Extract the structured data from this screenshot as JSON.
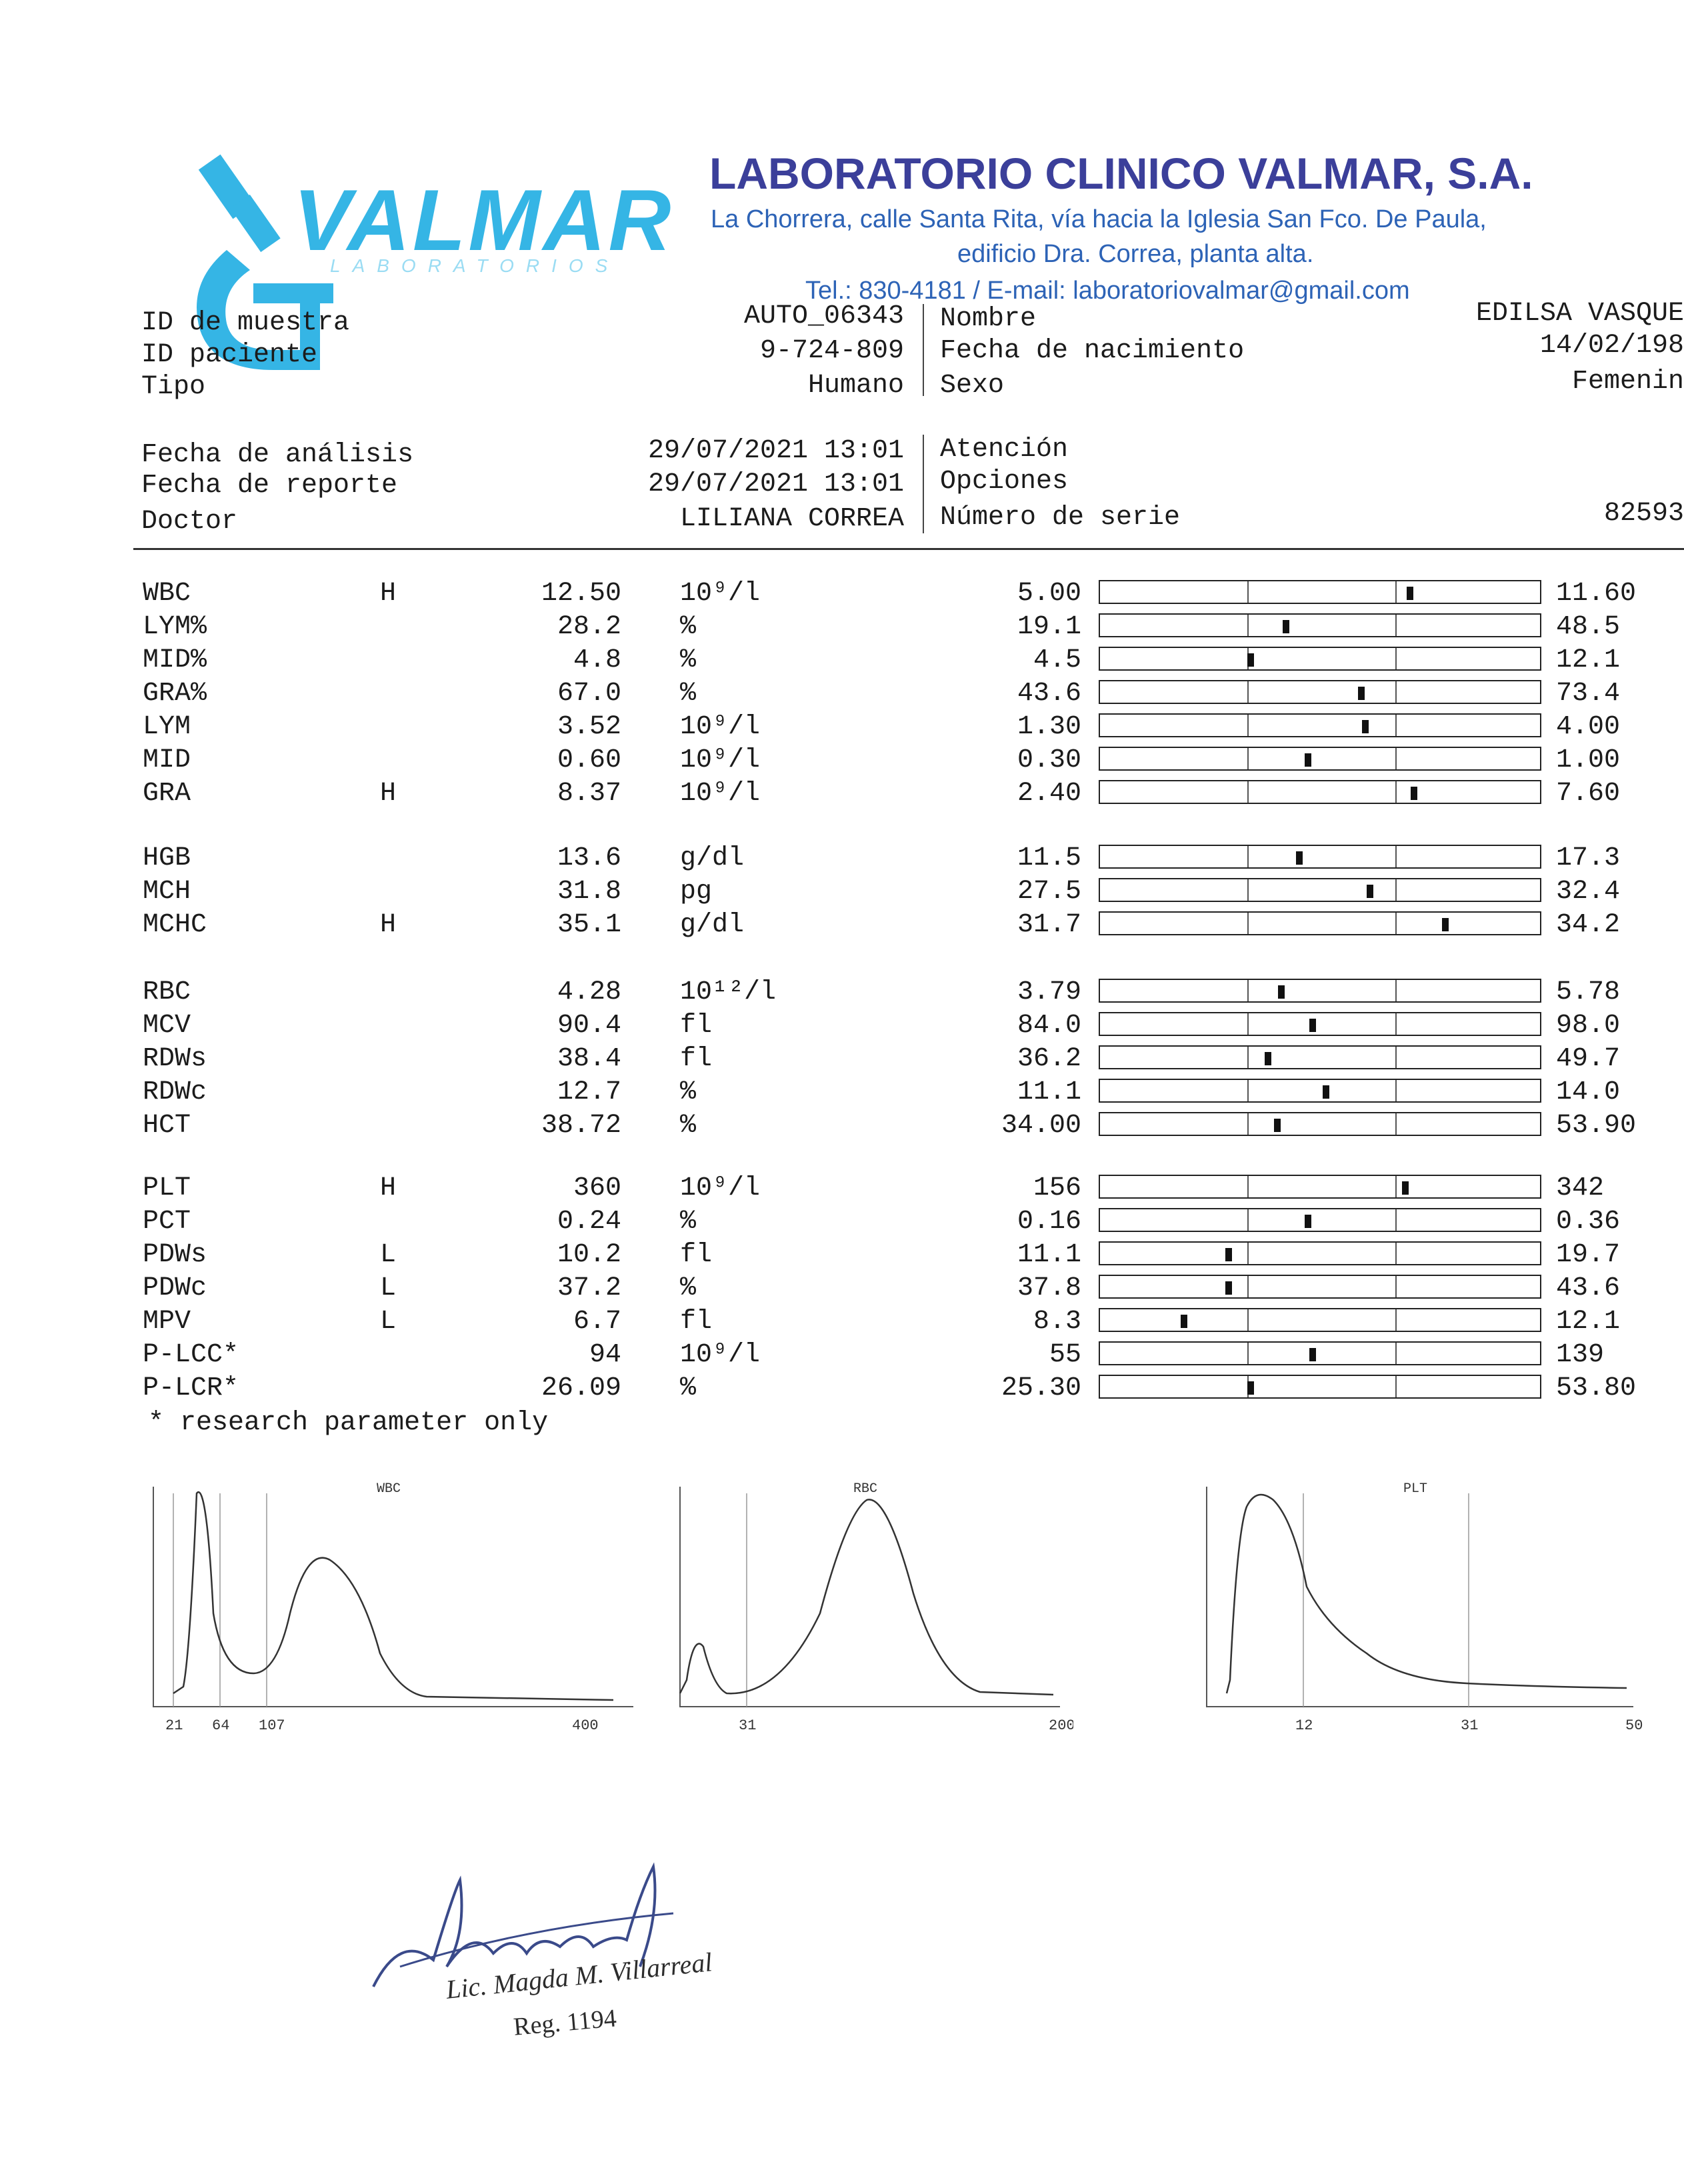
{
  "lab": {
    "logo_text": "VALMAR",
    "logo_subtext": "LABORATORIOS",
    "name": "LABORATORIO CLINICO VALMAR, S.A.",
    "address_line1": "La Chorrera, calle Santa Rita, vía hacia la Iglesia San Fco. De Paula,",
    "address_line2": "edificio Dra. Correa, planta alta.",
    "contact": "Tel.: 830-4181  /  E-mail: laboratoriovalmar@gmail.com"
  },
  "patient": {
    "sample_id_label": "ID de muestra",
    "sample_id": "AUTO_06343",
    "patient_id_label": "ID paciente",
    "patient_id": "9-724-809",
    "type_label": "Tipo",
    "type": "Humano",
    "name_label": "Nombre",
    "name": "EDILSA VASQUE",
    "dob_label": "Fecha de nacimiento",
    "dob": "14/02/198",
    "sex_label": "Sexo",
    "sex": "Femenin"
  },
  "report": {
    "analysis_date_label": "Fecha de análisis",
    "analysis_date": "29/07/2021 13:01",
    "report_date_label": "Fecha de reporte",
    "report_date": "29/07/2021 13:01",
    "doctor_label": "Doctor",
    "doctor": "LILIANA CORREA",
    "attention_label": "Atención",
    "options_label": "Opciones",
    "serial_label": "Número de serie",
    "serial": "82593"
  },
  "groups": [
    [
      {
        "name": "WBC",
        "flag": "H",
        "value": "12.50",
        "unit": "10⁹/l",
        "low": "5.00",
        "high": "11.60",
        "pos": 0.7
      },
      {
        "name": "LYM%",
        "flag": "",
        "value": "28.2",
        "unit": "%",
        "low": "19.1",
        "high": "48.5",
        "pos": 0.42
      },
      {
        "name": "MID%",
        "flag": "",
        "value": "4.8",
        "unit": "%",
        "low": "4.5",
        "high": "12.1",
        "pos": 0.34
      },
      {
        "name": "GRA%",
        "flag": "",
        "value": "67.0",
        "unit": "%",
        "low": "43.6",
        "high": "73.4",
        "pos": 0.59
      },
      {
        "name": "LYM",
        "flag": "",
        "value": "3.52",
        "unit": "10⁹/l",
        "low": "1.30",
        "high": "4.00",
        "pos": 0.6
      },
      {
        "name": "MID",
        "flag": "",
        "value": "0.60",
        "unit": "10⁹/l",
        "low": "0.30",
        "high": "1.00",
        "pos": 0.47
      },
      {
        "name": "GRA",
        "flag": "H",
        "value": "8.37",
        "unit": "10⁹/l",
        "low": "2.40",
        "high": "7.60",
        "pos": 0.71
      }
    ],
    [
      {
        "name": "HGB",
        "flag": "",
        "value": "13.6",
        "unit": "g/dl",
        "low": "11.5",
        "high": "17.3",
        "pos": 0.45
      },
      {
        "name": "MCH",
        "flag": "",
        "value": "31.8",
        "unit": "pg",
        "low": "27.5",
        "high": "32.4",
        "pos": 0.61
      },
      {
        "name": "MCHC",
        "flag": "H",
        "value": "35.1",
        "unit": "g/dl",
        "low": "31.7",
        "high": "34.2",
        "pos": 0.78
      }
    ],
    [
      {
        "name": "RBC",
        "flag": "",
        "value": "4.28",
        "unit": "10¹²/l",
        "low": "3.79",
        "high": "5.78",
        "pos": 0.41
      },
      {
        "name": "MCV",
        "flag": "",
        "value": "90.4",
        "unit": "fl",
        "low": "84.0",
        "high": "98.0",
        "pos": 0.48
      },
      {
        "name": "RDWs",
        "flag": "",
        "value": "38.4",
        "unit": "fl",
        "low": "36.2",
        "high": "49.7",
        "pos": 0.38
      },
      {
        "name": "RDWc",
        "flag": "",
        "value": "12.7",
        "unit": "%",
        "low": "11.1",
        "high": "14.0",
        "pos": 0.51
      },
      {
        "name": "HCT",
        "flag": "",
        "value": "38.72",
        "unit": "%",
        "low": "34.00",
        "high": "53.90",
        "pos": 0.4
      }
    ],
    [
      {
        "name": "PLT",
        "flag": "H",
        "value": "360",
        "unit": "10⁹/l",
        "low": "156",
        "high": "342",
        "pos": 0.69
      },
      {
        "name": "PCT",
        "flag": "",
        "value": "0.24",
        "unit": "%",
        "low": "0.16",
        "high": "0.36",
        "pos": 0.47
      },
      {
        "name": "PDWs",
        "flag": "L",
        "value": "10.2",
        "unit": "fl",
        "low": "11.1",
        "high": "19.7",
        "pos": 0.29
      },
      {
        "name": "PDWc",
        "flag": "L",
        "value": "37.2",
        "unit": "%",
        "low": "37.8",
        "high": "43.6",
        "pos": 0.29
      },
      {
        "name": "MPV",
        "flag": "L",
        "value": "6.7",
        "unit": "fl",
        "low": "8.3",
        "high": "12.1",
        "pos": 0.19
      },
      {
        "name": "P-LCC*",
        "flag": "",
        "value": "94",
        "unit": "10⁹/l",
        "low": "55",
        "high": "139",
        "pos": 0.48
      },
      {
        "name": "P-LCR*",
        "flag": "",
        "value": "26.09",
        "unit": "%",
        "low": "25.30",
        "high": "53.80",
        "pos": 0.34
      }
    ]
  ],
  "footnote": "* research parameter only",
  "histograms": [
    {
      "title": "WBC",
      "ticks": [
        "21",
        "64",
        "107",
        "400"
      ]
    },
    {
      "title": "RBC",
      "ticks": [
        "31",
        "200"
      ]
    },
    {
      "title": "PLT",
      "ticks": [
        "12",
        "31",
        "50"
      ]
    }
  ],
  "signature": {
    "name": "Lic. Magda M. Villarreal",
    "reg": "Reg. 1194"
  }
}
